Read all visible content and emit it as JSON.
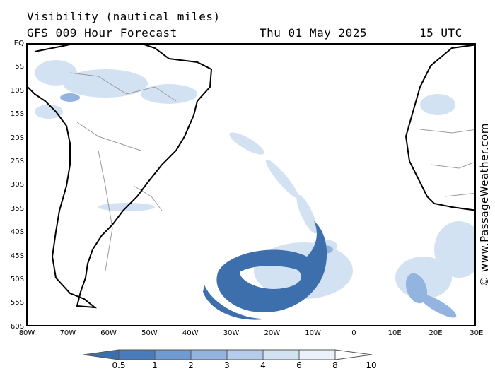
{
  "header": {
    "line1": "Visibility (nautical miles)",
    "model": "GFS 009 Hour Forecast",
    "date": "Thu 01 May 2025",
    "time": "15 UTC"
  },
  "credit": "© www.PassageWeather.com",
  "axes": {
    "lat_labels": [
      "EQ",
      "5S",
      "10S",
      "15S",
      "20S",
      "25S",
      "30S",
      "35S",
      "40S",
      "45S",
      "50S",
      "55S",
      "60S"
    ],
    "lon_labels": [
      "80W",
      "70W",
      "60W",
      "50W",
      "40W",
      "30W",
      "20W",
      "10W",
      "0",
      "10E",
      "20E",
      "30E"
    ]
  },
  "legend": {
    "ticks": [
      "0.5",
      "1",
      "2",
      "3",
      "4",
      "6",
      "8",
      "10"
    ],
    "colors": [
      "#3e6fad",
      "#4a7cbd",
      "#6f9ad2",
      "#93b4df",
      "#b5cdea",
      "#d3e2f3",
      "#eaf1fa",
      "#ffffff"
    ]
  },
  "colors": {
    "land_outline": "#000000",
    "border": "#9a9a9a",
    "low_vis": "#3e6fad",
    "mid_vis": "#93b4df",
    "light_vis": "#d3e2f3"
  }
}
